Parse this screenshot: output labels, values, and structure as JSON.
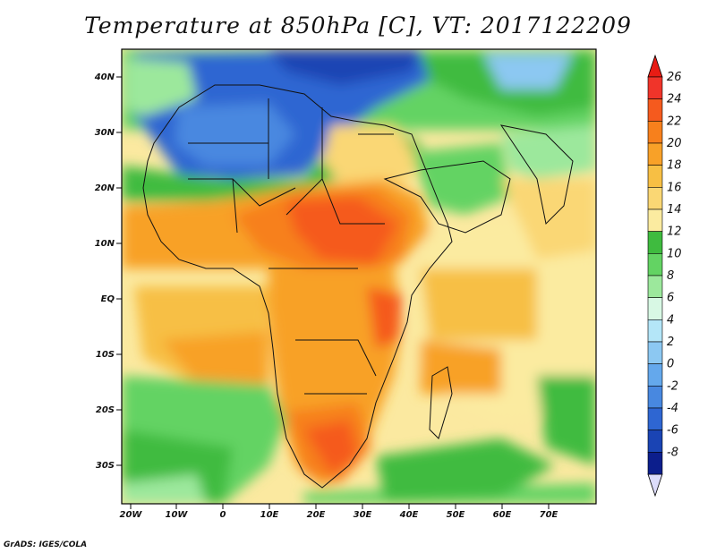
{
  "title": "Temperature at 850hPa [C], VT: 2017122209",
  "credit": "GrADS: IGES/COLA",
  "axes": {
    "lat_labels": [
      "40N",
      "30N",
      "20N",
      "10N",
      "EQ",
      "10S",
      "20S",
      "30S"
    ],
    "lon_labels": [
      "20W",
      "10W",
      "0",
      "10E",
      "20E",
      "30E",
      "40E",
      "50E",
      "60E",
      "70E"
    ]
  },
  "colorbar": {
    "labels": [
      "26",
      "24",
      "22",
      "20",
      "18",
      "16",
      "14",
      "12",
      "10",
      "8",
      "6",
      "4",
      "2",
      "0",
      "-2",
      "-4",
      "-6",
      "-8"
    ],
    "colors": [
      "#f0342a",
      "#f55a1e",
      "#f7801c",
      "#f8a128",
      "#f7bf44",
      "#fad774",
      "#fbeba0",
      "#3fbb3f",
      "#63d363",
      "#9ce89c",
      "#d8f8e4",
      "#b4e6f8",
      "#8cc8f2",
      "#64a8ec",
      "#4888e0",
      "#2e66d2",
      "#1a44b4",
      "#0c1e8c"
    ],
    "top_triangle_color": "#e81c14",
    "bottom_triangle_color": "#dcdcfa"
  }
}
